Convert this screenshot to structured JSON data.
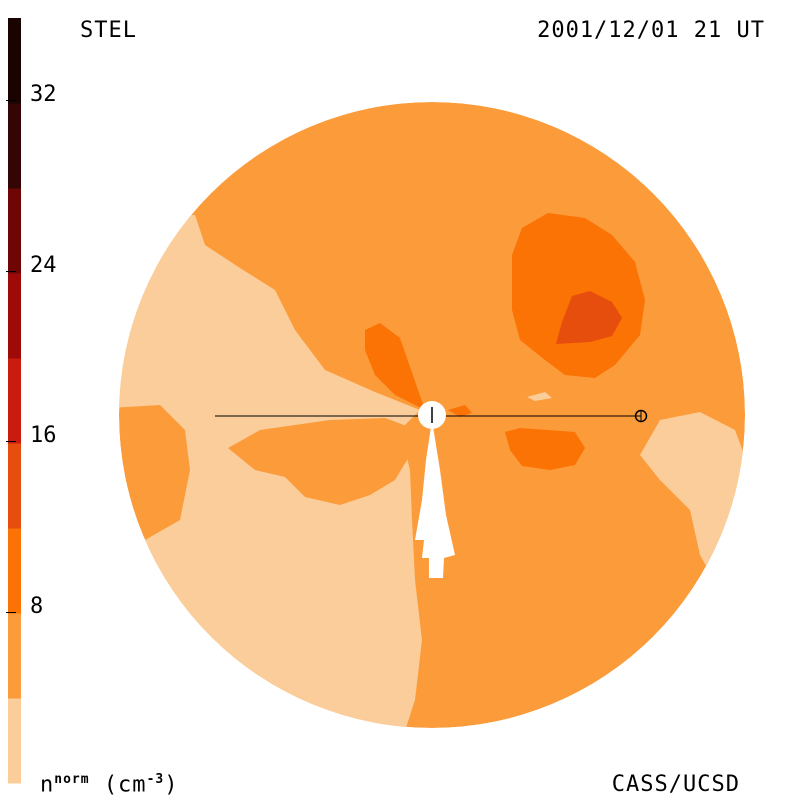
{
  "header": {
    "source": "STEL",
    "timestamp": "2001/12/01 21 UT"
  },
  "footer": {
    "credit": "CASS/UCSD",
    "unit_base": "n",
    "unit_sup": "norm",
    "unit_rest": "(cm",
    "unit_exp": "-3",
    "unit_close": ")"
  },
  "colorbar": {
    "tick_labels": [
      "32",
      "24",
      "16",
      "8"
    ],
    "bands": [
      "#fbcd9a",
      "#fb9b3a",
      "#fb7304",
      "#e54e0c",
      "#c91c0e",
      "#9e0a08",
      "#6e0606",
      "#330605",
      "#1a0402"
    ]
  }
}
